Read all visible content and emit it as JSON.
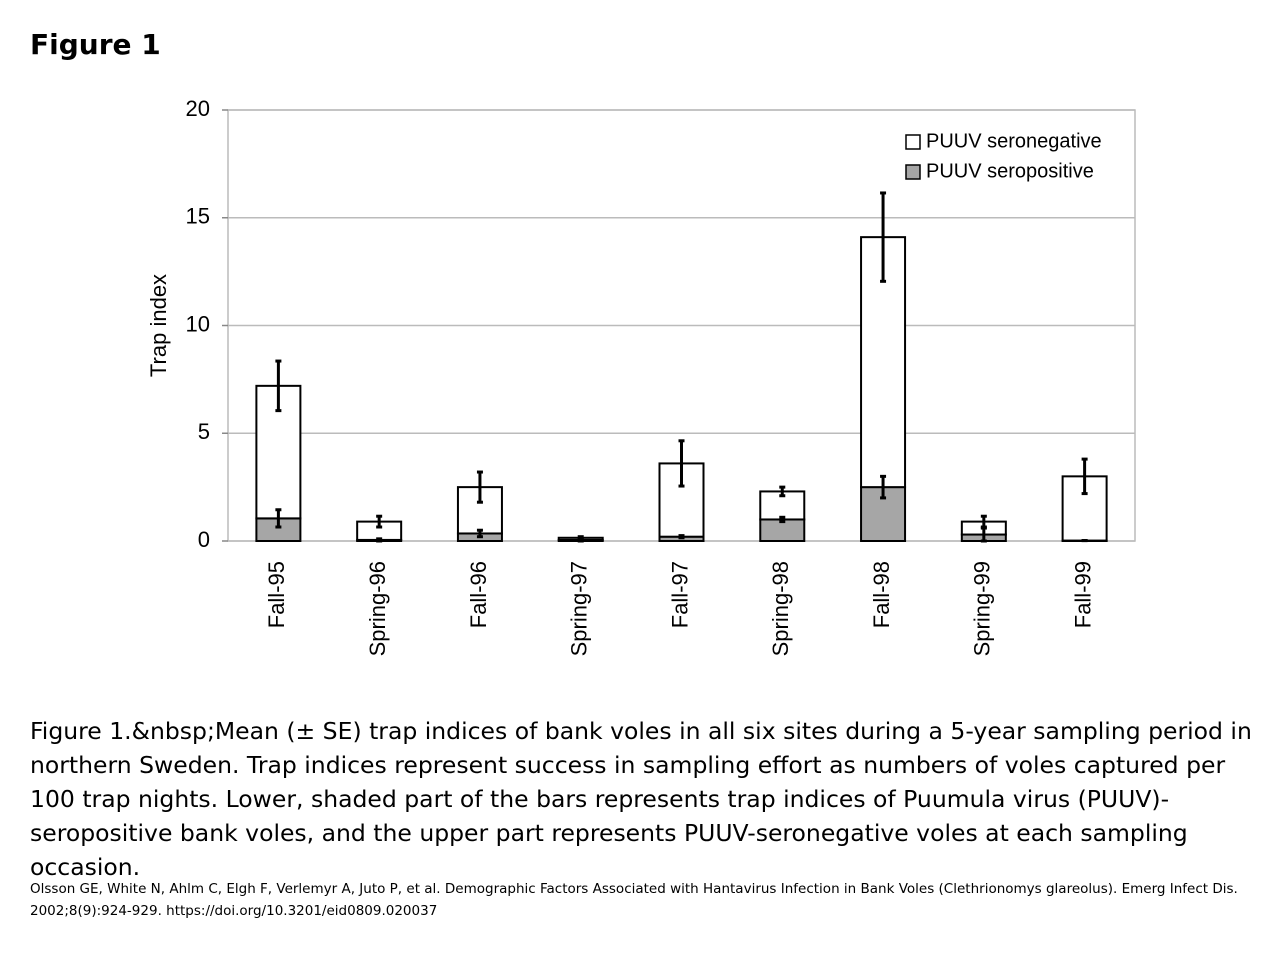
{
  "page_title": "Figure 1",
  "caption": "Figure 1.&nbsp;Mean (± SE) trap indices of bank voles in all six sites during a 5-year sampling period in northern Sweden. Trap indices represent success in sampling effort as numbers of voles captured per 100 trap nights. Lower, shaded part of the bars represents trap indices of Puumula virus (PUUV)-seropositive bank voles, and the upper part represents PUUV-seronegative voles at each sampling occasion.",
  "citation": "Olsson GE, White N, Ahlm C, Elgh F, Verlemyr A, Juto P, et al. Demographic Factors Associated with Hantavirus Infection in Bank Voles (Clethrionomys glareolus). Emerg Infect Dis. 2002;8(9):924-929. https://doi.org/10.3201/eid0809.020037",
  "chart_data": {
    "type": "stacked_bar",
    "y_label": "Trap index",
    "categories": [
      "Fall-95",
      "Spring-96",
      "Fall-96",
      "Spring-97",
      "Fall-97",
      "Spring-98",
      "Fall-98",
      "Spring-99",
      "Fall-99"
    ],
    "series": [
      {
        "name": "PUUV seropositive",
        "color": "#a6a6a6",
        "values": [
          1.05,
          0.05,
          0.35,
          0.05,
          0.2,
          1.0,
          2.5,
          0.3,
          0.02
        ],
        "errors": [
          0.4,
          0.05,
          0.15,
          0.05,
          0.05,
          0.1,
          0.5,
          0.3,
          0
        ]
      },
      {
        "name": "PUUV seronegative",
        "color": "#ffffff",
        "values": [
          6.15,
          0.85,
          2.15,
          0.1,
          3.4,
          1.3,
          11.6,
          0.6,
          2.98
        ],
        "errors": [
          1.15,
          0.25,
          0.7,
          0.05,
          1.05,
          0.2,
          2.05,
          0.25,
          0.8
        ]
      }
    ],
    "ylim": [
      0,
      20
    ],
    "yticks": [
      0,
      5,
      10,
      15,
      20
    ],
    "grid": true,
    "legend": "upper right"
  }
}
